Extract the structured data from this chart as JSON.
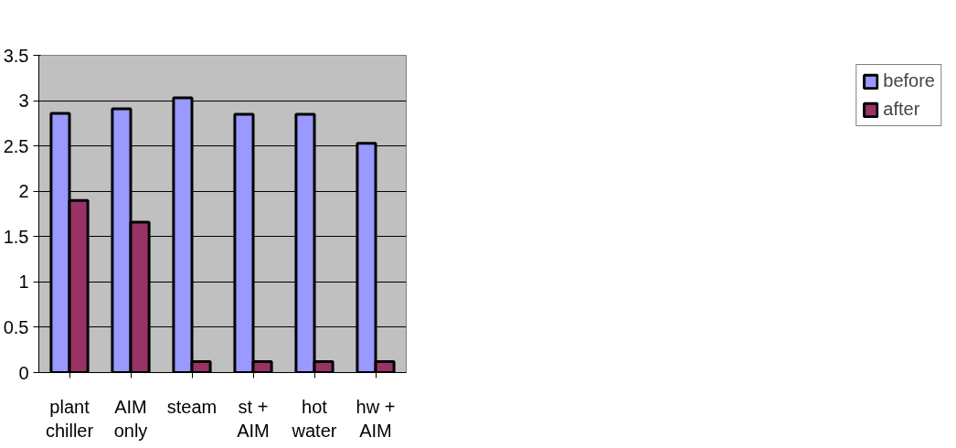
{
  "chart_data": {
    "type": "bar",
    "categories": [
      "plant chiller",
      "AIM only",
      "steam",
      "st + AIM",
      "hot water",
      "hw + AIM"
    ],
    "series": [
      {
        "name": "before",
        "color": "#9999ff",
        "values": [
          2.86,
          2.91,
          3.03,
          2.85,
          2.85,
          2.53
        ]
      },
      {
        "name": "after",
        "color": "#993366",
        "values": [
          1.9,
          1.66,
          0.12,
          0.12,
          0.12,
          0.12
        ]
      }
    ],
    "ylim": [
      0,
      3.5
    ],
    "yticks": [
      0,
      0.5,
      1,
      1.5,
      2,
      2.5,
      3,
      3.5
    ],
    "grid": "y",
    "legend": "right"
  }
}
